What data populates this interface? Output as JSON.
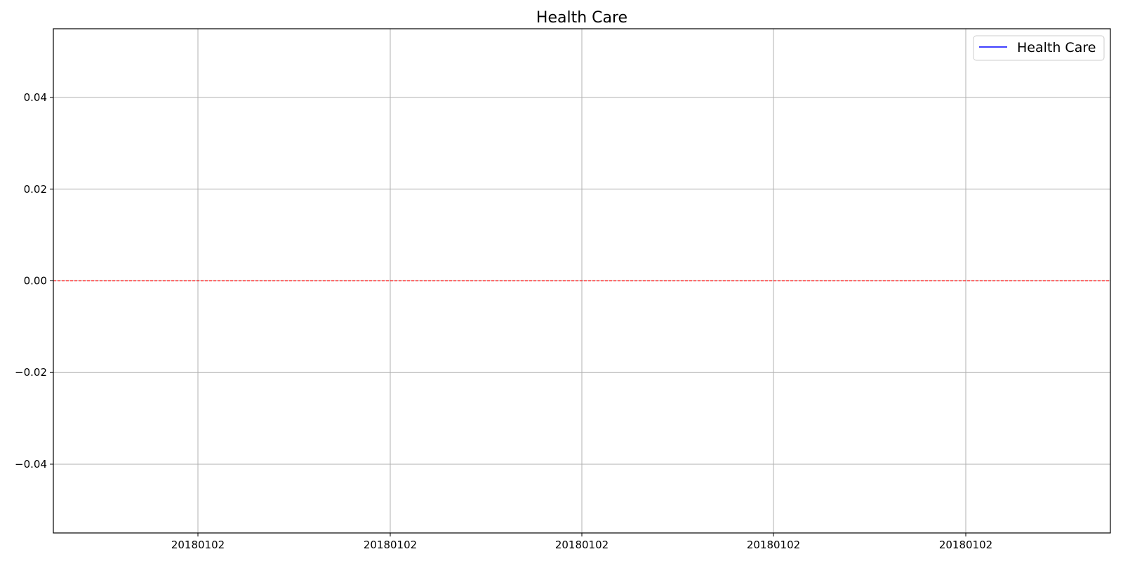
{
  "chart_data": {
    "type": "line",
    "title": "Health Care",
    "xlabel": "",
    "ylabel": "",
    "x_tick_labels": [
      "20180102",
      "20180102",
      "20180102",
      "20180102",
      "20180102"
    ],
    "y_ticks": [
      0.04,
      0.02,
      0.0,
      -0.02,
      -0.04
    ],
    "y_tick_labels": [
      "0.04",
      "0.02",
      "0.00",
      "−0.02",
      "−0.04"
    ],
    "ylim": [
      -0.055,
      0.055
    ],
    "grid": true,
    "legend_position": "top-right",
    "series": [
      {
        "name": "Health Care",
        "color": "#0000ff",
        "x": [],
        "values": []
      }
    ],
    "reference_line": {
      "y": 0.0,
      "color": "#ff0000",
      "style": "dashed"
    }
  }
}
